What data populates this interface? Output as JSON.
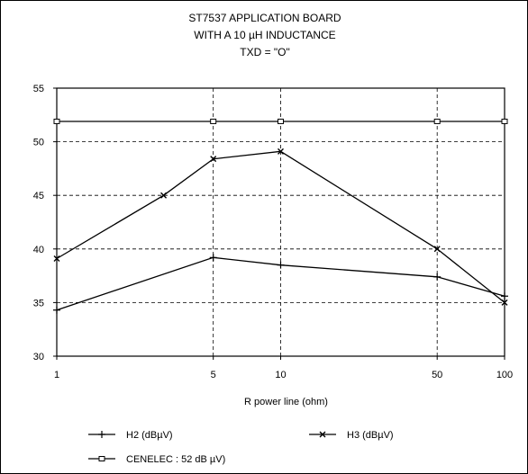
{
  "chart_data": {
    "type": "line",
    "title_lines": [
      "ST7537 APPLICATION BOARD",
      "WITH A 10 µH INDUCTANCE",
      "TXD = \"O\""
    ],
    "xlabel": "R power line (ohm)",
    "x_scale": "log",
    "x_ticks": [
      1,
      5,
      10,
      50,
      100
    ],
    "x_tick_labels": [
      "1",
      "5",
      "10",
      "50",
      "100"
    ],
    "ylim": [
      30,
      55
    ],
    "y_ticks": [
      30,
      35,
      40,
      45,
      50,
      55
    ],
    "y_tick_labels": [
      "30",
      "35",
      "40",
      "45",
      "50",
      "55"
    ],
    "grid": "dashed",
    "legend_position": "bottom",
    "series": [
      {
        "name": "H2 (dBµV)",
        "marker": "plus",
        "points": [
          [
            1,
            34.3
          ],
          [
            5,
            39.2
          ],
          [
            10,
            38.5
          ],
          [
            50,
            37.4
          ],
          [
            100,
            35.6
          ]
        ]
      },
      {
        "name": "H3 (dBµV)",
        "marker": "x",
        "points": [
          [
            1,
            39.1
          ],
          [
            3,
            45.0
          ],
          [
            5,
            48.4
          ],
          [
            10,
            49.1
          ],
          [
            50,
            40.0
          ],
          [
            100,
            35.0
          ]
        ]
      },
      {
        "name": "CENELEC : 52 dB  µV)",
        "marker": "rect",
        "points": [
          [
            1,
            51.9
          ],
          [
            5,
            51.9
          ],
          [
            10,
            51.9
          ],
          [
            50,
            51.9
          ],
          [
            100,
            51.9
          ]
        ]
      }
    ]
  }
}
